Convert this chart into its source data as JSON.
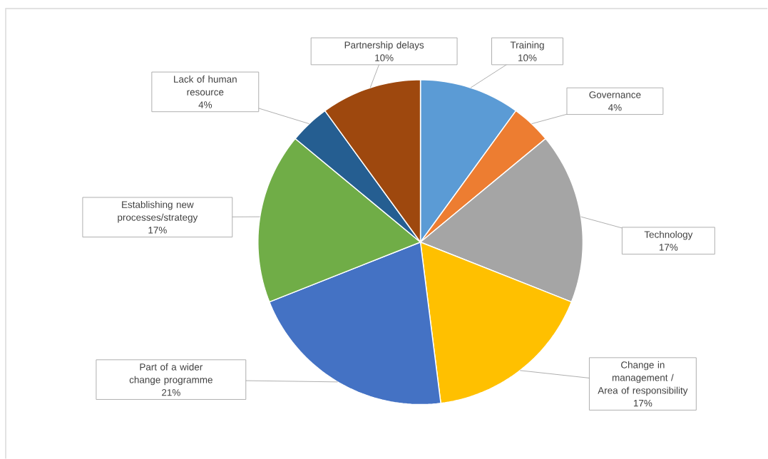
{
  "chart_data": {
    "type": "pie",
    "categories": [
      "Training",
      "Governance",
      "Technology",
      "Change in management / Area of responsibility",
      "Part of a wider change programme",
      "Establishing new processes/strategy",
      "Lack of human resource",
      "Partnership delays"
    ],
    "values": [
      10,
      4,
      17,
      17,
      21,
      17,
      4,
      10
    ],
    "value_labels": [
      "10%",
      "4%",
      "17%",
      "17%",
      "21%",
      "17%",
      "4%",
      "10%"
    ],
    "colors": [
      "#5b9bd5",
      "#ed7d31",
      "#a5a5a5",
      "#ffc000",
      "#4472c4",
      "#70ad47",
      "#255e91",
      "#9e480e"
    ]
  }
}
